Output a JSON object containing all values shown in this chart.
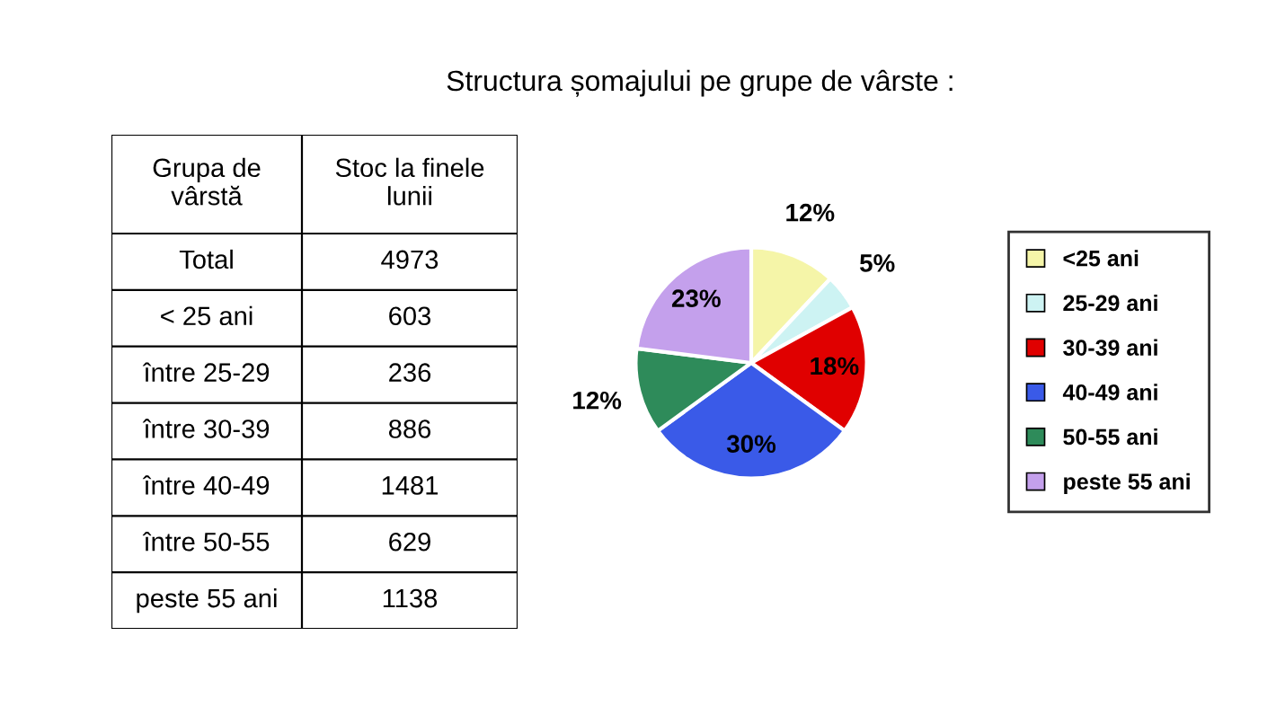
{
  "chart_data": {
    "type": "pie",
    "title": "Structura șomajului pe grupe de vârste :",
    "categories": [
      "<25 ani",
      "25-29 ani",
      "30-39 ani",
      "40-49 ani",
      "50-55 ani",
      "peste 55 ani"
    ],
    "values": [
      12,
      5,
      18,
      30,
      12,
      23
    ],
    "value_labels": [
      "12%",
      "5%",
      "18%",
      "30%",
      "12%",
      "23%"
    ],
    "colors": [
      "#f5f5a8",
      "#cdf3f3",
      "#e00000",
      "#3a5ae8",
      "#2e8b5a",
      "#c4a0ec"
    ],
    "legend": "right",
    "annotations": [
      "Grupa de\nvârstă",
      "Stoc la finele\nlunii",
      "Total",
      "4973",
      "< 25 ani",
      "603",
      "între 25-29",
      "236",
      "între 30-39",
      "886",
      "între 40-49",
      "1481",
      "între 50-55",
      "629",
      "peste 55 ani",
      "1138"
    ]
  }
}
